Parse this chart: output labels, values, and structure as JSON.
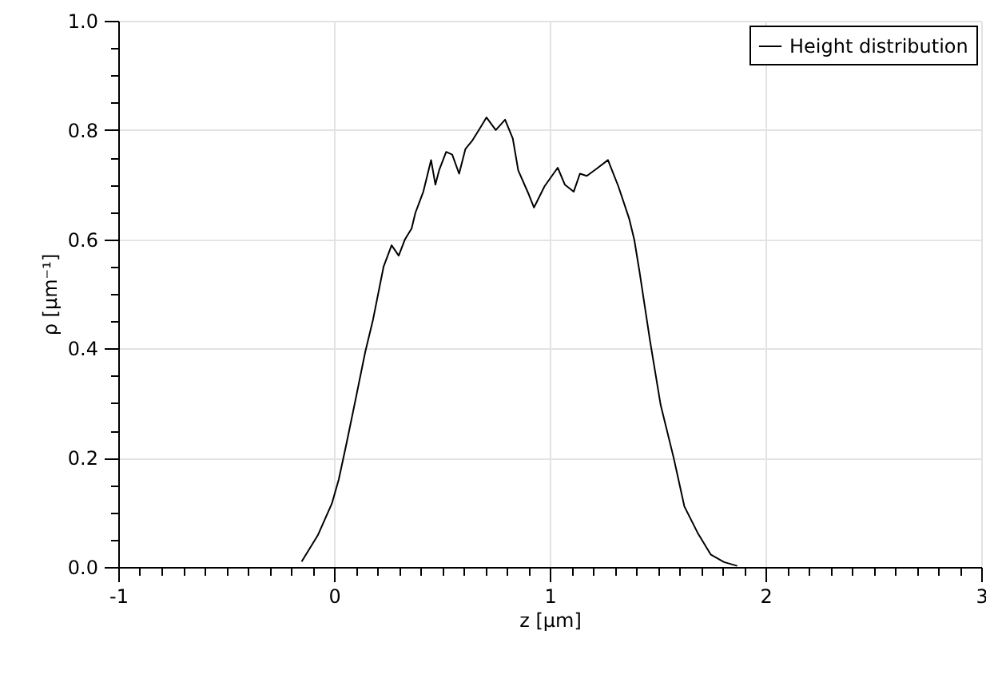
{
  "chart_data": {
    "type": "line",
    "xlabel": "z [µm]",
    "ylabel": "ρ [µm⁻¹]",
    "xlim": [
      -1,
      3
    ],
    "ylim": [
      0,
      1
    ],
    "xticks": [
      -1,
      {
        "value": -0.9,
        "label": null
      },
      {
        "value": -0.8,
        "label": null
      },
      {
        "value": -0.7,
        "label": null
      },
      {
        "value": -0.6,
        "label": null
      },
      {
        "value": -0.5,
        "label": null
      },
      {
        "value": -0.4,
        "label": null
      },
      {
        "value": -0.3,
        "label": null
      },
      {
        "value": -0.2,
        "label": null
      },
      {
        "value": -0.1,
        "label": null
      },
      0,
      {
        "value": 0.1,
        "label": null
      },
      {
        "value": 0.2,
        "label": null
      },
      {
        "value": 0.3,
        "label": null
      },
      {
        "value": 0.4,
        "label": null
      },
      {
        "value": 0.5,
        "label": null
      },
      {
        "value": 0.6,
        "label": null
      },
      {
        "value": 0.7,
        "label": null
      },
      {
        "value": 0.8,
        "label": null
      },
      {
        "value": 0.9,
        "label": null
      },
      1,
      {
        "value": 1.1,
        "label": null
      },
      {
        "value": 1.2,
        "label": null
      },
      {
        "value": 1.3,
        "label": null
      },
      {
        "value": 1.4,
        "label": null
      },
      {
        "value": 1.5,
        "label": null
      },
      {
        "value": 1.6,
        "label": null
      },
      {
        "value": 1.7,
        "label": null
      },
      {
        "value": 1.8,
        "label": null
      },
      {
        "value": 1.9,
        "label": null
      },
      2,
      {
        "value": 2.1,
        "label": null
      },
      {
        "value": 2.2,
        "label": null
      },
      {
        "value": 2.3,
        "label": null
      },
      {
        "value": 2.4,
        "label": null
      },
      {
        "value": 2.5,
        "label": null
      },
      {
        "value": 2.6,
        "label": null
      },
      {
        "value": 2.7,
        "label": null
      },
      {
        "value": 2.8,
        "label": null
      },
      {
        "value": 2.9,
        "label": null
      },
      3
    ],
    "yticks": [
      {
        "value": 0,
        "label": "0.0"
      },
      {
        "value": 0.05,
        "label": null
      },
      {
        "value": 0.1,
        "label": null
      },
      {
        "value": 0.15,
        "label": null
      },
      {
        "value": 0.2,
        "label": "0.2"
      },
      {
        "value": 0.25,
        "label": null
      },
      {
        "value": 0.3,
        "label": null
      },
      {
        "value": 0.35,
        "label": null
      },
      {
        "value": 0.4,
        "label": "0.4"
      },
      {
        "value": 0.45,
        "label": null
      },
      {
        "value": 0.5,
        "label": null
      },
      {
        "value": 0.55,
        "label": null
      },
      {
        "value": 0.6,
        "label": "0.6"
      },
      {
        "value": 0.65,
        "label": null
      },
      {
        "value": 0.7,
        "label": null
      },
      {
        "value": 0.75,
        "label": null
      },
      {
        "value": 0.8,
        "label": "0.8"
      },
      {
        "value": 0.85,
        "label": null
      },
      {
        "value": 0.9,
        "label": null
      },
      {
        "value": 0.95,
        "label": null
      },
      {
        "value": 1,
        "label": "1.0"
      }
    ],
    "grid": true,
    "legend": "top right",
    "x": [
      -0.15,
      -0.075,
      -0.01,
      0.022,
      0.059,
      0.095,
      0.145,
      0.181,
      0.23,
      0.267,
      0.3,
      0.328,
      0.36,
      0.377,
      0.414,
      0.45,
      0.47,
      0.487,
      0.52,
      0.548,
      0.58,
      0.609,
      0.64,
      0.67,
      0.707,
      0.75,
      0.793,
      0.829,
      0.854,
      0.903,
      0.927,
      0.976,
      1.037,
      1.07,
      1.111,
      1.14,
      1.172,
      1.22,
      1.27,
      1.318,
      1.368,
      1.392,
      1.416,
      1.465,
      1.514,
      1.575,
      1.624,
      1.685,
      1.746,
      1.808,
      1.869
    ],
    "series": [
      {
        "name": "Height distribution",
        "color": "#000000",
        "values": [
          0.01,
          0.058,
          0.116,
          0.16,
          0.228,
          0.297,
          0.394,
          0.453,
          0.55,
          0.589,
          0.57,
          0.599,
          0.62,
          0.648,
          0.687,
          0.745,
          0.7,
          0.726,
          0.76,
          0.755,
          0.72,
          0.765,
          0.78,
          0.799,
          0.823,
          0.8,
          0.819,
          0.784,
          0.726,
          0.682,
          0.658,
          0.697,
          0.731,
          0.7,
          0.687,
          0.72,
          0.716,
          0.73,
          0.745,
          0.697,
          0.638,
          0.599,
          0.541,
          0.414,
          0.297,
          0.199,
          0.111,
          0.063,
          0.023,
          0.009,
          0.002
        ]
      }
    ]
  }
}
